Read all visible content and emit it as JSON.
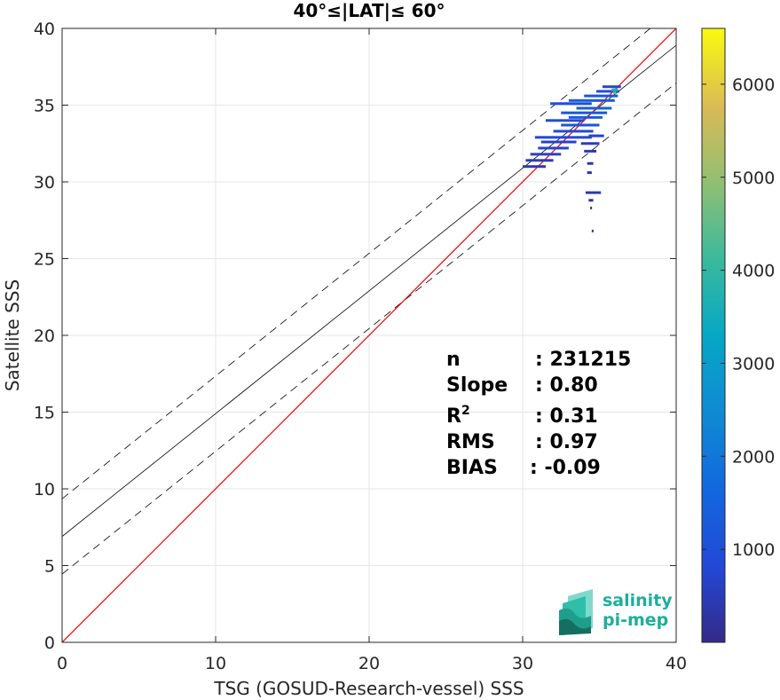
{
  "chart_data": {
    "type": "scatter",
    "title": "40°≤|LAT|≤ 60°",
    "xlabel": "TSG (GOSUD-Research-vessel) SSS",
    "ylabel": "Satellite SSS",
    "xlim": [
      0,
      40
    ],
    "ylim": [
      0,
      40
    ],
    "xticks": [
      "0",
      "10",
      "20",
      "30",
      "40"
    ],
    "yticks": [
      "0",
      "5",
      "10",
      "15",
      "20",
      "25",
      "30",
      "35",
      "40"
    ],
    "grid": true,
    "colorbar": {
      "range": [
        0,
        6600
      ],
      "ticks": [
        "1000",
        "2000",
        "3000",
        "4000",
        "5000",
        "6000"
      ],
      "colormap": "parula"
    },
    "lines": {
      "identity": {
        "color": "#ff0000",
        "intercept": 0,
        "slope": 1
      },
      "regression": {
        "color": "#000000",
        "intercept": 6.9,
        "slope": 0.8
      },
      "upper_band": {
        "color": "#000000",
        "style": "dashed",
        "intercept": 9.35,
        "slope": 0.8
      },
      "lower_band": {
        "color": "#000000",
        "style": "dashed",
        "intercept": 4.45,
        "slope": 0.8
      }
    },
    "density_segments": [
      {
        "x0": 30.0,
        "x1": 31.5,
        "y": 31.0,
        "count": 400
      },
      {
        "x0": 30.2,
        "x1": 32.0,
        "y": 31.4,
        "count": 500
      },
      {
        "x0": 30.5,
        "x1": 32.5,
        "y": 31.8,
        "count": 600
      },
      {
        "x0": 31.0,
        "x1": 33.0,
        "y": 32.2,
        "count": 700
      },
      {
        "x0": 31.2,
        "x1": 33.5,
        "y": 32.6,
        "count": 600
      },
      {
        "x0": 30.8,
        "x1": 34.5,
        "y": 32.9,
        "count": 800
      },
      {
        "x0": 32.0,
        "x1": 34.6,
        "y": 33.3,
        "count": 900
      },
      {
        "x0": 32.5,
        "x1": 35.0,
        "y": 33.7,
        "count": 1100
      },
      {
        "x0": 31.5,
        "x1": 34.0,
        "y": 34.0,
        "count": 900
      },
      {
        "x0": 33.0,
        "x1": 35.2,
        "y": 34.2,
        "count": 1300
      },
      {
        "x0": 32.5,
        "x1": 35.5,
        "y": 34.5,
        "count": 1200
      },
      {
        "x0": 33.5,
        "x1": 35.8,
        "y": 34.8,
        "count": 1400
      },
      {
        "x0": 31.8,
        "x1": 34.5,
        "y": 35.1,
        "count": 1000
      },
      {
        "x0": 33.0,
        "x1": 36.0,
        "y": 35.3,
        "count": 1300
      },
      {
        "x0": 34.0,
        "x1": 36.2,
        "y": 35.6,
        "count": 1200
      },
      {
        "x0": 34.8,
        "x1": 36.3,
        "y": 35.9,
        "count": 1000
      },
      {
        "x0": 35.2,
        "x1": 36.4,
        "y": 36.2,
        "count": 700
      },
      {
        "x0": 34.3,
        "x1": 35.3,
        "y": 33.0,
        "count": 600
      },
      {
        "x0": 33.8,
        "x1": 35.0,
        "y": 32.5,
        "count": 500
      },
      {
        "x0": 34.0,
        "x1": 34.8,
        "y": 32.0,
        "count": 400
      },
      {
        "x0": 34.2,
        "x1": 34.6,
        "y": 31.2,
        "count": 300
      },
      {
        "x0": 34.2,
        "x1": 34.5,
        "y": 30.6,
        "count": 250
      },
      {
        "x0": 34.1,
        "x1": 35.1,
        "y": 29.3,
        "count": 400
      },
      {
        "x0": 34.3,
        "x1": 34.6,
        "y": 28.8,
        "count": 150
      },
      {
        "x0": 34.4,
        "x1": 34.5,
        "y": 28.3,
        "count": 100
      },
      {
        "x0": 34.5,
        "x1": 34.6,
        "y": 26.8,
        "count": 100
      },
      {
        "x0": 35.8,
        "x1": 36.2,
        "y": 36.0,
        "count": 3800
      },
      {
        "x0": 35.9,
        "x1": 36.1,
        "y": 35.8,
        "count": 4500
      }
    ]
  },
  "stats": [
    {
      "label": "n",
      "value": ": 231215"
    },
    {
      "label": "Slope",
      "value": ": 0.80"
    },
    {
      "label": "R",
      "sup": "2",
      "value": ": 0.31"
    },
    {
      "label": "RMS",
      "value": ": 0.97"
    },
    {
      "label": "BIAS",
      "value": ": -0.09"
    }
  ],
  "logo": {
    "line1": "salinity",
    "line2": "pi-mep"
  }
}
